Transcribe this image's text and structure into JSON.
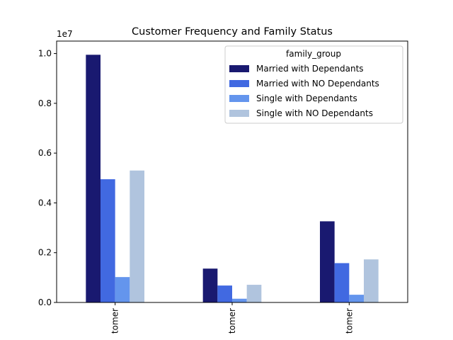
{
  "chart_data": {
    "type": "bar",
    "title": "Customer Frequency and Family Status",
    "xlabel": "",
    "ylabel": "",
    "scale_label": "1e7",
    "categories": [
      "tomer",
      "tomer",
      "tomer"
    ],
    "y_ticks": [
      0.0,
      0.2,
      0.4,
      0.6,
      0.8,
      1.0
    ],
    "y_tick_labels": [
      "0.0",
      "0.2",
      "0.4",
      "0.6",
      "0.8",
      "1.0"
    ],
    "ylim": [
      0,
      1.05
    ],
    "grid": false,
    "legend": {
      "title": "family_group",
      "placement": "top-right"
    },
    "series": [
      {
        "name": "Married with Dependants",
        "color": "#191970",
        "values": [
          0.995,
          0.136,
          0.326
        ]
      },
      {
        "name": "Married with NO Dependants",
        "color": "#4169e1",
        "values": [
          0.495,
          0.068,
          0.158
        ]
      },
      {
        "name": "Single with Dependants",
        "color": "#6495ed",
        "values": [
          0.102,
          0.015,
          0.031
        ]
      },
      {
        "name": "Single with NO Dependants",
        "color": "#b0c4de",
        "values": [
          0.53,
          0.071,
          0.173
        ]
      }
    ]
  }
}
